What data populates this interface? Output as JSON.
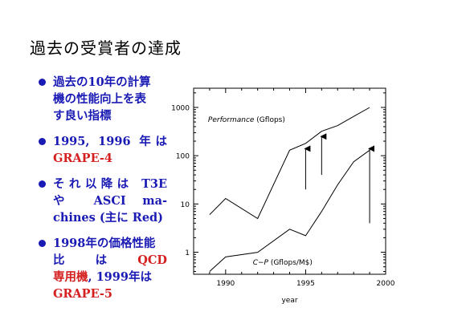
{
  "slide": {
    "title": "過去の受賞者の達成",
    "bullets": [
      {
        "lines": [
          {
            "segments": [
              {
                "text": "過去の10年の計算"
              }
            ]
          },
          {
            "segments": [
              {
                "text": "機の性能向上を表"
              }
            ]
          },
          {
            "segments": [
              {
                "text": "す良い指標"
              }
            ]
          }
        ]
      },
      {
        "lines": [
          {
            "justify": true,
            "segments": [
              {
                "text": "1995,"
              },
              {
                "text": "1996"
              },
              {
                "text": "年は"
              }
            ]
          },
          {
            "segments": [
              {
                "text": "GRAPE-4",
                "color": "red"
              }
            ]
          }
        ]
      },
      {
        "lines": [
          {
            "justify": true,
            "segments": [
              {
                "text": "それ以降は"
              },
              {
                "text": "T3E"
              }
            ]
          },
          {
            "justify": true,
            "segments": [
              {
                "text": "や"
              },
              {
                "text": "ASCI"
              },
              {
                "text": "ma-"
              }
            ]
          },
          {
            "segments": [
              {
                "text": "chines (主に Red)"
              }
            ]
          }
        ]
      },
      {
        "lines": [
          {
            "segments": [
              {
                "text": "1998年の価格性能"
              }
            ]
          },
          {
            "justify": true,
            "segments": [
              {
                "text": "比"
              },
              {
                "text": "は"
              },
              {
                "text": "QCD",
                "color": "red"
              }
            ]
          },
          {
            "segments": [
              {
                "text": "専用機",
                "color": "red"
              },
              {
                "text": ", 1999年は"
              }
            ]
          },
          {
            "segments": [
              {
                "text": "GRAPE-5",
                "color": "red"
              }
            ]
          }
        ]
      }
    ]
  },
  "chart_data": {
    "type": "line",
    "xlabel": "year",
    "ylabel": "",
    "xlim": [
      1988,
      2000
    ],
    "ylim": [
      0.35,
      2500
    ],
    "yscale": "log",
    "x_ticks": [
      1990,
      1995,
      2000
    ],
    "y_ticks": [
      1,
      10,
      100,
      1000
    ],
    "y_tick_labels": [
      "1",
      "10",
      "100",
      "1000"
    ],
    "series": [
      {
        "key": "performance",
        "x": [
          1989,
          1990,
          1992,
          1994,
          1995,
          1996,
          1997,
          1998,
          1999
        ],
        "values": [
          6,
          13,
          5,
          130,
          180,
          320,
          420,
          650,
          1000
        ]
      },
      {
        "key": "cp",
        "x": [
          1989,
          1990,
          1992,
          1994,
          1995,
          1996,
          1997,
          1998,
          1999
        ],
        "values": [
          0.4,
          0.8,
          1.0,
          3.0,
          2.2,
          7,
          25,
          75,
          130
        ]
      }
    ],
    "annotations": [
      {
        "key": "perf-label",
        "parts": [
          {
            "text": "Performance",
            "italic": true
          },
          {
            "text": " (Gflops)"
          }
        ],
        "x": 1988.9,
        "y": 500
      },
      {
        "key": "cp-label",
        "parts": [
          {
            "text": "C−P",
            "italic": true
          },
          {
            "text": " (Gflops/M$)"
          }
        ],
        "x": 1991.7,
        "y": 0.55
      }
    ],
    "arrows": [
      {
        "x": 1995,
        "y_from": 20,
        "y_to": 140
      },
      {
        "x": 1996,
        "y_from": 40,
        "y_to": 250
      },
      {
        "x": 1999,
        "y_from": 4,
        "y_to": 140
      }
    ]
  }
}
